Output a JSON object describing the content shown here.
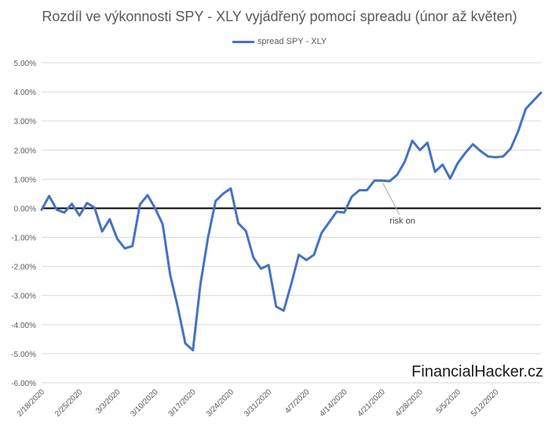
{
  "chart_data": {
    "type": "line",
    "title": "Rozdíl ve výkonnosti SPY - XLY vyjádřený pomocí spreadu (únor až květen)",
    "legend": {
      "position": "top"
    },
    "xlabel": "",
    "ylabel": "",
    "ylim": [
      -6,
      5
    ],
    "y_ticks": [
      "5.00%",
      "4.00%",
      "3.00%",
      "2.00%",
      "1.00%",
      "0.00%",
      "-1.00%",
      "-2.00%",
      "-3.00%",
      "-4.00%",
      "-5.00%",
      "-6.00%"
    ],
    "x_ticks": [
      "2/18/2020",
      "2/25/2020",
      "3/3/2020",
      "3/10/2020",
      "3/17/2020",
      "3/24/2020",
      "3/31/2020",
      "4/7/2020",
      "4/14/2020",
      "4/21/2020",
      "4/28/2020",
      "5/5/2020",
      "5/12/2020"
    ],
    "grid": true,
    "zero_line": true,
    "annotation": {
      "text": "risk on",
      "x": "4/21/2020",
      "y": 0.95
    },
    "series": [
      {
        "name": "spread SPY - XLY",
        "color": "#4472C4",
        "points": [
          [
            "2/18/2020",
            -0.05
          ],
          [
            "2/19/2020",
            0.42
          ],
          [
            "2/20/2020",
            -0.05
          ],
          [
            "2/21/2020",
            -0.15
          ],
          [
            "2/24/2020",
            0.15
          ],
          [
            "2/25/2020",
            -0.25
          ],
          [
            "2/26/2020",
            0.18
          ],
          [
            "2/27/2020",
            0.02
          ],
          [
            "2/28/2020",
            -0.8
          ],
          [
            "3/2/2020",
            -0.38
          ],
          [
            "3/3/2020",
            -1.05
          ],
          [
            "3/4/2020",
            -1.38
          ],
          [
            "3/5/2020",
            -1.3
          ],
          [
            "3/6/2020",
            0.13
          ],
          [
            "3/9/2020",
            0.45
          ],
          [
            "3/10/2020",
            0.0
          ],
          [
            "3/11/2020",
            -0.55
          ],
          [
            "3/12/2020",
            -2.3
          ],
          [
            "3/13/2020",
            -3.4
          ],
          [
            "3/16/2020",
            -4.65
          ],
          [
            "3/17/2020",
            -4.88
          ],
          [
            "3/18/2020",
            -2.6
          ],
          [
            "3/19/2020",
            -1.0
          ],
          [
            "3/20/2020",
            0.25
          ],
          [
            "3/23/2020",
            0.5
          ],
          [
            "3/24/2020",
            0.68
          ],
          [
            "3/25/2020",
            -0.52
          ],
          [
            "3/26/2020",
            -0.78
          ],
          [
            "3/27/2020",
            -1.7
          ],
          [
            "3/30/2020",
            -2.08
          ],
          [
            "3/31/2020",
            -1.95
          ],
          [
            "4/1/2020",
            -3.38
          ],
          [
            "4/2/2020",
            -3.52
          ],
          [
            "4/3/2020",
            -2.6
          ],
          [
            "4/6/2020",
            -1.6
          ],
          [
            "4/7/2020",
            -1.78
          ],
          [
            "4/8/2020",
            -1.6
          ],
          [
            "4/9/2020",
            -0.85
          ],
          [
            "4/13/2020",
            -0.12
          ],
          [
            "4/14/2020",
            -0.15
          ],
          [
            "4/15/2020",
            0.4
          ],
          [
            "4/16/2020",
            0.62
          ],
          [
            "4/17/2020",
            0.62
          ],
          [
            "4/20/2020",
            0.95
          ],
          [
            "4/21/2020",
            0.95
          ],
          [
            "4/22/2020",
            0.93
          ],
          [
            "4/23/2020",
            1.15
          ],
          [
            "4/24/2020",
            1.6
          ],
          [
            "4/27/2020",
            2.32
          ],
          [
            "4/28/2020",
            2.0
          ],
          [
            "4/29/2020",
            2.25
          ],
          [
            "4/30/2020",
            1.25
          ],
          [
            "5/1/2020",
            1.5
          ],
          [
            "5/4/2020",
            1.02
          ],
          [
            "5/5/2020",
            1.55
          ],
          [
            "5/6/2020",
            1.9
          ],
          [
            "5/7/2020",
            2.2
          ],
          [
            "5/8/2020",
            1.97
          ],
          [
            "5/11/2020",
            1.78
          ],
          [
            "5/12/2020",
            1.75
          ],
          [
            "5/13/2020",
            1.78
          ],
          [
            "5/14/2020",
            2.05
          ],
          [
            "5/15/2020",
            2.65
          ],
          [
            "5/18/2020",
            3.42
          ],
          [
            "5/20/2020",
            3.97
          ]
        ]
      }
    ]
  },
  "watermark": "FinancialHacker.cz"
}
